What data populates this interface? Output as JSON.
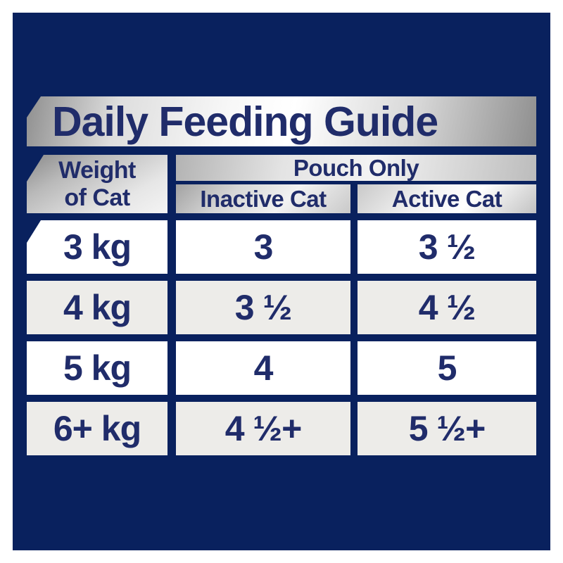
{
  "title": "Daily Feeding Guide",
  "table": {
    "weight_header": [
      "Weight",
      "of Cat"
    ],
    "group_header": "Pouch Only",
    "columns": [
      "Inactive Cat",
      "Active Cat"
    ],
    "rows": [
      {
        "weight": "3 kg",
        "inactive": "3",
        "active": "3 ½"
      },
      {
        "weight": "4 kg",
        "inactive": "3 ½",
        "active": "4 ½"
      },
      {
        "weight": "5 kg",
        "inactive": "4",
        "active": "5"
      },
      {
        "weight": "6+ kg",
        "inactive": "4 ½+",
        "active": "5 ½+"
      }
    ]
  },
  "colors": {
    "background_navy": "#09215e",
    "text_navy": "#202c6a",
    "silver_metallic": "#d9d9d9",
    "row_white": "#ffffff",
    "row_gray": "#edece9",
    "page_border": "#ffffff"
  },
  "chart_data": {
    "type": "table",
    "title": "Daily Feeding Guide",
    "columns": [
      "Weight of Cat",
      "Pouch Only — Inactive Cat",
      "Pouch Only — Active Cat"
    ],
    "rows": [
      [
        "3 kg",
        "3",
        "3 ½"
      ],
      [
        "4 kg",
        "3 ½",
        "4 ½"
      ],
      [
        "5 kg",
        "4",
        "5"
      ],
      [
        "6+ kg",
        "4 ½+",
        "5 ½+"
      ]
    ]
  }
}
